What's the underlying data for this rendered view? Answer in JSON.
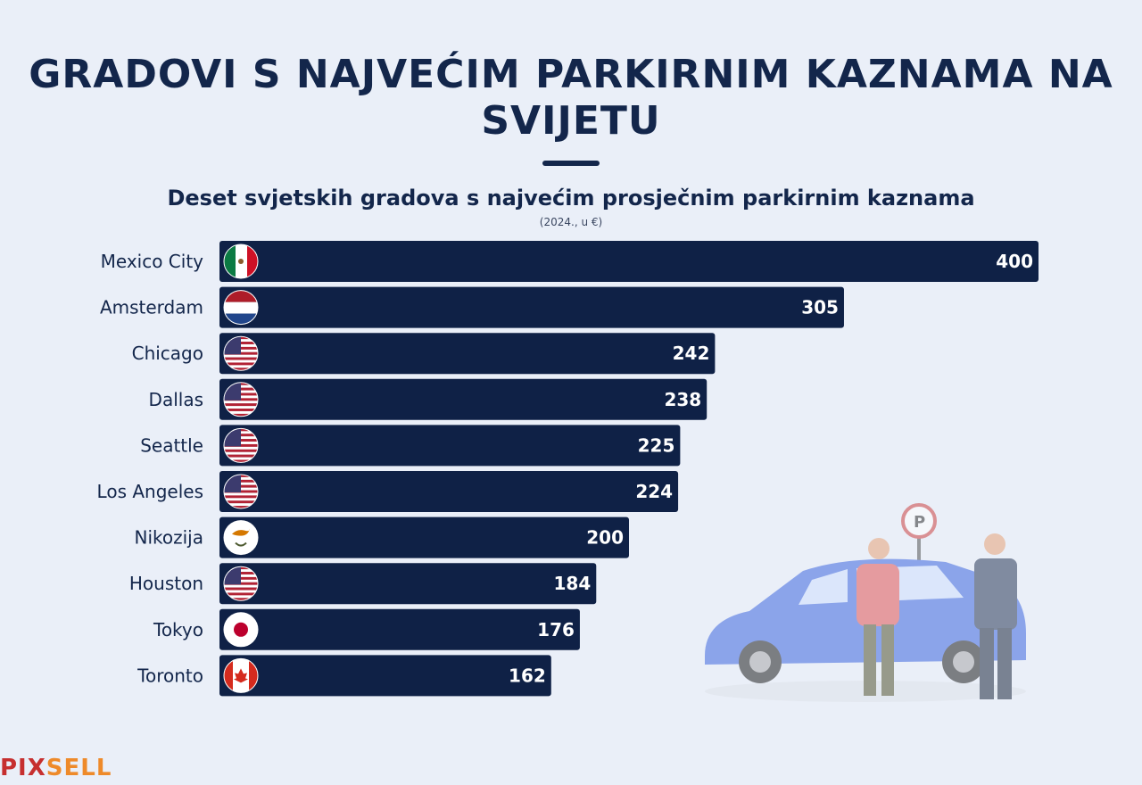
{
  "chart_data": {
    "type": "bar",
    "orientation": "horizontal",
    "title": "GRADOVI S NAJVEĆIM PARKIRNIM KAZNAMA NA SVIJETU",
    "subtitle": "Deset svjetskih gradova s najvećim prosječnim parkirnim kaznama",
    "unit_note": "(2024., u €)",
    "categories": [
      "Mexico City",
      "Amsterdam",
      "Chicago",
      "Dallas",
      "Seattle",
      "Los Angeles",
      "Nikozija",
      "Houston",
      "Tokyo",
      "Toronto"
    ],
    "flags": [
      "mexico-flag-icon",
      "netherlands-flag-icon",
      "usa-flag-icon",
      "usa-flag-icon",
      "usa-flag-icon",
      "usa-flag-icon",
      "cyprus-flag-icon",
      "usa-flag-icon",
      "japan-flag-icon",
      "canada-flag-icon"
    ],
    "values": [
      400,
      305,
      242,
      238,
      225,
      224,
      200,
      184,
      176,
      162
    ],
    "xlim": [
      0,
      400
    ],
    "grid": false,
    "bar_color": "#0f2146",
    "label_color": "#ffffff"
  },
  "logo": {
    "part1": "PIX",
    "part2": "SELL"
  }
}
